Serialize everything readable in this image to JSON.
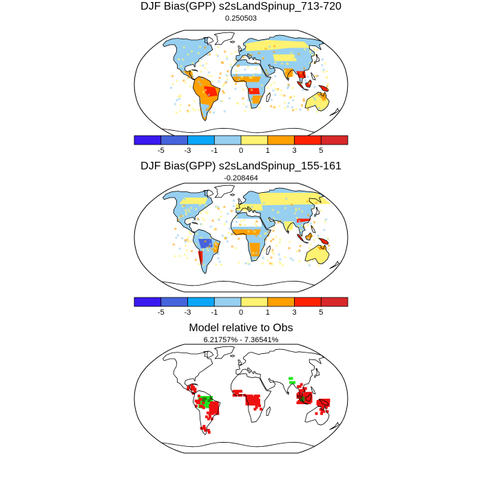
{
  "panels": [
    {
      "title": "DJF Bias(GPP) s2sLandSpinup_713-720",
      "subtitle": "0.250503",
      "variant": "bias1",
      "colorbar": true
    },
    {
      "title": "DJF Bias(GPP) s2sLandSpinup_155-161",
      "subtitle": "-0.208464",
      "variant": "bias2",
      "colorbar": true
    },
    {
      "title": "Model relative to Obs",
      "subtitle": "6.21757% - 7.36541%",
      "variant": "relative",
      "colorbar": false
    }
  ],
  "colorbar": {
    "colors": [
      "#3a19f0",
      "#4564dc",
      "#0aa6f8",
      "#96cff0",
      "#fff272",
      "#ffa000",
      "#ff2200",
      "#d8282a"
    ],
    "tick_labels": [
      "-5",
      "-3",
      "-1",
      "0",
      "1",
      "3",
      "5"
    ]
  },
  "relative_colors": {
    "model_higher": "#1ee61e",
    "model_lower": "#ee1111",
    "other": "#2f7a10"
  }
}
